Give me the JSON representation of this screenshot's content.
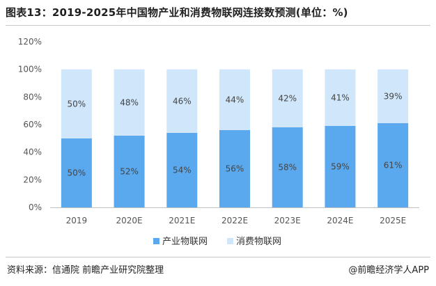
{
  "chart_data": {
    "type": "bar",
    "stacked": true,
    "title": "图表13：2019-2025年中国物产业和消费物联网连接数预测(单位：%)",
    "categories": [
      "2019",
      "2020E",
      "2021E",
      "2022E",
      "2023E",
      "2024E",
      "2025E"
    ],
    "series": [
      {
        "name": "产业物联网",
        "color": "#5aa9ee",
        "values": [
          50,
          52,
          54,
          56,
          58,
          59,
          61
        ]
      },
      {
        "name": "消费物联网",
        "color": "#cfe6fb",
        "values": [
          50,
          48,
          46,
          44,
          42,
          41,
          39
        ]
      }
    ],
    "yticks": [
      "0%",
      "20%",
      "40%",
      "60%",
      "80%",
      "100%",
      "120%"
    ],
    "ylim": [
      0,
      120
    ],
    "legend": "bottom",
    "grid": false
  },
  "source": "资料来源：信通院 前瞻产业研究院整理",
  "brand": "@前瞻经济学人APP"
}
